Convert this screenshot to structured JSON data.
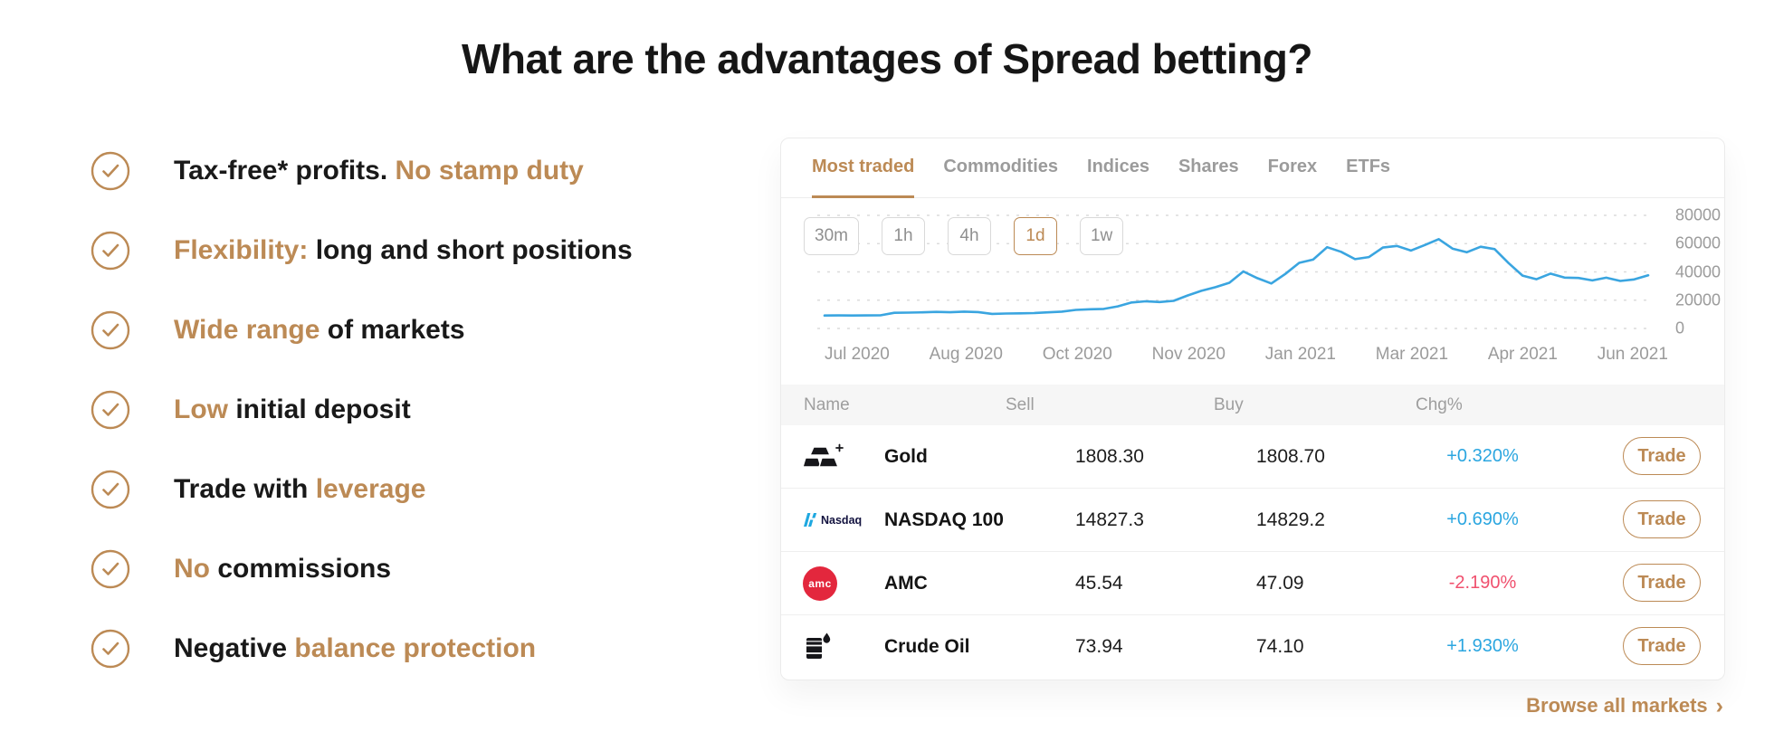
{
  "title": "What are the advantages of Spread betting?",
  "colors": {
    "accent": "#bc8a55",
    "positive": "#2ba6e0",
    "negative": "#f0506e",
    "line": "#3aa5e0",
    "grid": "#dcdcdc"
  },
  "advantages": [
    {
      "parts": [
        {
          "text": "Tax-free* profits. ",
          "accent": false
        },
        {
          "text": "No stamp duty",
          "accent": true
        }
      ]
    },
    {
      "parts": [
        {
          "text": "Flexibility:",
          "accent": true
        },
        {
          "text": " long and short positions",
          "accent": false
        }
      ]
    },
    {
      "parts": [
        {
          "text": "Wide range",
          "accent": true
        },
        {
          "text": " of markets",
          "accent": false
        }
      ]
    },
    {
      "parts": [
        {
          "text": "Low",
          "accent": true
        },
        {
          "text": " initial deposit",
          "accent": false
        }
      ]
    },
    {
      "parts": [
        {
          "text": "Trade with ",
          "accent": false
        },
        {
          "text": "leverage",
          "accent": true
        }
      ]
    },
    {
      "parts": [
        {
          "text": "No",
          "accent": true
        },
        {
          "text": " commissions",
          "accent": false
        }
      ]
    },
    {
      "parts": [
        {
          "text": "Negative ",
          "accent": false
        },
        {
          "text": "balance protection",
          "accent": true
        }
      ]
    }
  ],
  "widget": {
    "tabs": [
      {
        "label": "Most traded",
        "active": true
      },
      {
        "label": "Commodities",
        "active": false
      },
      {
        "label": "Indices",
        "active": false
      },
      {
        "label": "Shares",
        "active": false
      },
      {
        "label": "Forex",
        "active": false
      },
      {
        "label": "ETFs",
        "active": false
      }
    ],
    "timeframes": [
      {
        "label": "30m",
        "active": false
      },
      {
        "label": "1h",
        "active": false
      },
      {
        "label": "4h",
        "active": false
      },
      {
        "label": "1d",
        "active": true
      },
      {
        "label": "1w",
        "active": false
      }
    ],
    "chart_data": {
      "type": "line",
      "title": "Most traded instrument price",
      "x_labels": [
        "Jul 2020",
        "Aug 2020",
        "Oct 2020",
        "Nov 2020",
        "Jan 2021",
        "Mar 2021",
        "Apr 2021",
        "Jun 2021"
      ],
      "y_ticks": [
        80000,
        60000,
        40000,
        20000,
        0
      ],
      "y_tick_labels": [
        "80000",
        "60000",
        "40000",
        "20000",
        "0"
      ],
      "ylim": [
        0,
        80000
      ],
      "grid": true,
      "legend": false,
      "values": [
        9150,
        9200,
        9170,
        9240,
        9300,
        11050,
        11200,
        11400,
        11700,
        11450,
        11900,
        11600,
        10300,
        10550,
        10700,
        10850,
        11400,
        11900,
        13100,
        13600,
        13800,
        15600,
        18400,
        19200,
        18700,
        19500,
        23300,
        26600,
        29200,
        32300,
        40300,
        35600,
        31800,
        38500,
        46400,
        48700,
        57500,
        54200,
        49000,
        50500,
        57200,
        58400,
        55100,
        59000,
        63200,
        56400,
        53900,
        57800,
        56100,
        46200,
        37400,
        34800,
        38800,
        36000,
        35700,
        34000,
        35900,
        33600,
        34700,
        37600
      ]
    },
    "table": {
      "headers": [
        "Name",
        "Sell",
        "Buy",
        "Chg%"
      ],
      "rows": [
        {
          "icon": "gold-icon",
          "name": "Gold",
          "sell": "1808.30",
          "buy": "1808.70",
          "chg": "+0.320%",
          "dir": "up",
          "trade_label": "Trade"
        },
        {
          "icon": "nasdaq-icon",
          "name": "NASDAQ 100",
          "sell": "14827.3",
          "buy": "14829.2",
          "chg": "+0.690%",
          "dir": "up",
          "trade_label": "Trade"
        },
        {
          "icon": "amc-icon",
          "name": "AMC",
          "sell": "45.54",
          "buy": "47.09",
          "chg": "-2.190%",
          "dir": "down",
          "trade_label": "Trade"
        },
        {
          "icon": "crude-oil-icon",
          "name": "Crude Oil",
          "sell": "73.94",
          "buy": "74.10",
          "chg": "+1.930%",
          "dir": "up",
          "trade_label": "Trade"
        }
      ]
    },
    "browse_label": "Browse all markets",
    "browse_chevron": "›"
  }
}
